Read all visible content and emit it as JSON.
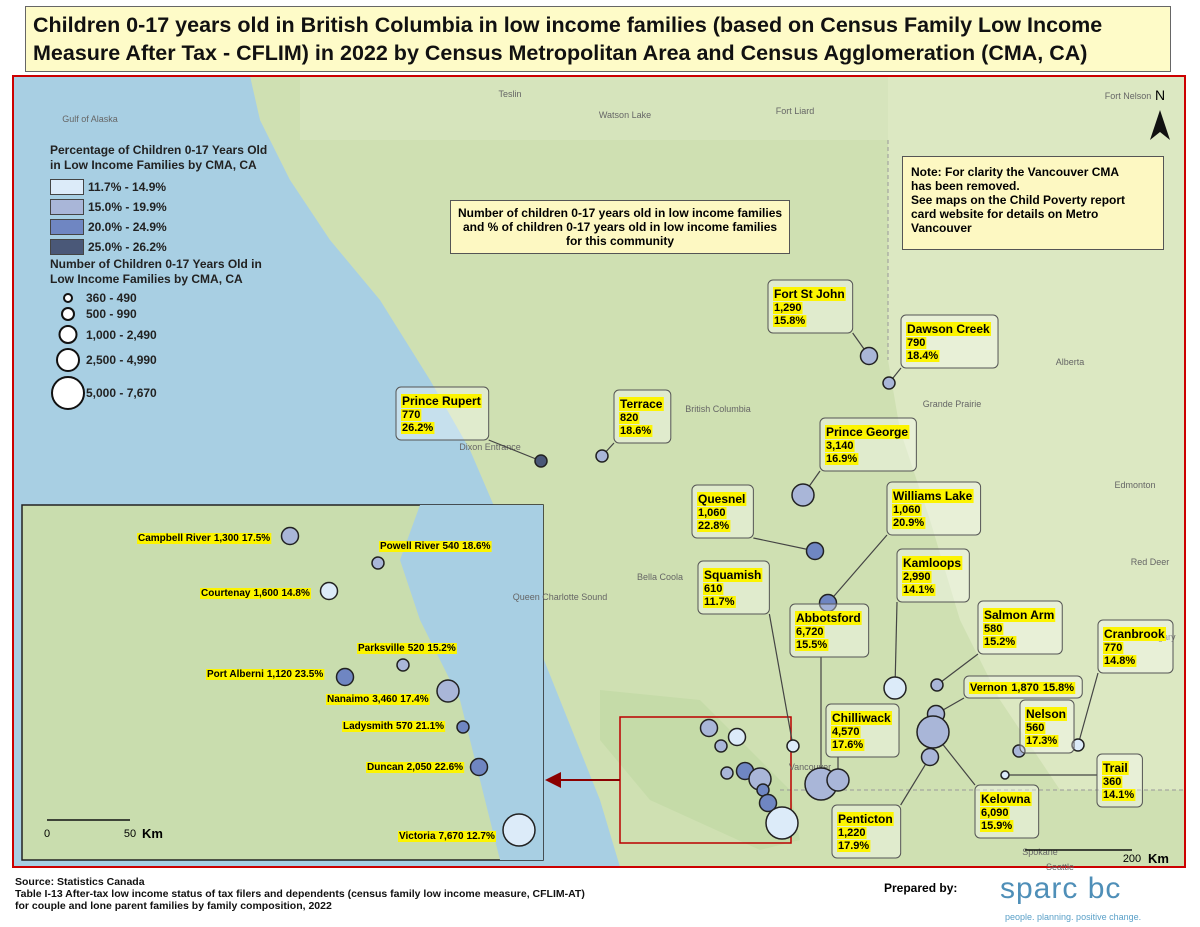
{
  "title": "Children 0-17 years old in British Columbia in low income families (based on Census Family Low Income Measure After Tax - CFLIM) in 2022 by Census Metropolitan Area and Census Agglomeration (CMA, CA)",
  "legend": {
    "color_title": "Percentage of Children 0-17 Years Old in Low Income Families by CMA, CA",
    "color_classes": [
      {
        "label": "11.7% - 14.9%",
        "min": 11.7,
        "max": 14.9,
        "color": "#dcebf9"
      },
      {
        "label": "15.0% - 19.9%",
        "min": 15.0,
        "max": 19.9,
        "color": "#a9b6d8"
      },
      {
        "label": "20.0% - 24.9%",
        "min": 20.0,
        "max": 24.9,
        "color": "#6f86c2"
      },
      {
        "label": "25.0% - 26.2%",
        "min": 25.0,
        "max": 26.2,
        "color": "#4a5878"
      }
    ],
    "size_title": "Number of Children 0-17 Years Old in Low Income Families by CMA, CA",
    "size_classes": [
      {
        "label": "360 - 490",
        "min": 360,
        "max": 490
      },
      {
        "label": "500 - 990",
        "min": 500,
        "max": 990
      },
      {
        "label": "1,000 - 2,490",
        "min": 1000,
        "max": 2490
      },
      {
        "label": "2,500 - 4,990",
        "min": 2500,
        "max": 4990
      },
      {
        "label": "5,000 - 7,670",
        "min": 5000,
        "max": 7670
      }
    ]
  },
  "callout": [
    "Number of children 0-17 years old in low income families",
    "and % of children 0-17 years old in low income families",
    "for this community"
  ],
  "note": [
    "Note: For clarity the Vancouver CMA",
    "has been removed.",
    "See maps on the Child Poverty report",
    "card website for details on Metro Vancouver"
  ],
  "communities": [
    {
      "name": "Fort St John",
      "count": 1290,
      "count_label": "1,290",
      "pct": 15.8,
      "pct_label": "15.8%"
    },
    {
      "name": "Dawson Creek",
      "count": 790,
      "count_label": "790",
      "pct": 18.4,
      "pct_label": "18.4%"
    },
    {
      "name": "Prince Rupert",
      "count": 770,
      "count_label": "770",
      "pct": 26.2,
      "pct_label": "26.2%"
    },
    {
      "name": "Terrace",
      "count": 820,
      "count_label": "820",
      "pct": 18.6,
      "pct_label": "18.6%"
    },
    {
      "name": "Prince George",
      "count": 3140,
      "count_label": "3,140",
      "pct": 16.9,
      "pct_label": "16.9%"
    },
    {
      "name": "Quesnel",
      "count": 1060,
      "count_label": "1,060",
      "pct": 22.8,
      "pct_label": "22.8%"
    },
    {
      "name": "Williams Lake",
      "count": 1060,
      "count_label": "1,060",
      "pct": 20.9,
      "pct_label": "20.9%"
    },
    {
      "name": "Kamloops",
      "count": 2990,
      "count_label": "2,990",
      "pct": 14.1,
      "pct_label": "14.1%"
    },
    {
      "name": "Squamish",
      "count": 610,
      "count_label": "610",
      "pct": 11.7,
      "pct_label": "11.7%"
    },
    {
      "name": "Abbotsford",
      "count": 6720,
      "count_label": "6,720",
      "pct": 15.5,
      "pct_label": "15.5%"
    },
    {
      "name": "Salmon Arm",
      "count": 580,
      "count_label": "580",
      "pct": 15.2,
      "pct_label": "15.2%"
    },
    {
      "name": "Cranbrook",
      "count": 770,
      "count_label": "770",
      "pct": 14.8,
      "pct_label": "14.8%"
    },
    {
      "name": "Vernon",
      "count": 1870,
      "count_label": "1,870",
      "pct": 15.8,
      "pct_label": "15.8%"
    },
    {
      "name": "Nelson",
      "count": 560,
      "count_label": "560",
      "pct": 17.3,
      "pct_label": "17.3%"
    },
    {
      "name": "Chilliwack",
      "count": 4570,
      "count_label": "4,570",
      "pct": 17.6,
      "pct_label": "17.6%"
    },
    {
      "name": "Trail",
      "count": 360,
      "count_label": "360",
      "pct": 14.1,
      "pct_label": "14.1%"
    },
    {
      "name": "Kelowna",
      "count": 6090,
      "count_label": "6,090",
      "pct": 15.9,
      "pct_label": "15.9%"
    },
    {
      "name": "Penticton",
      "count": 1220,
      "count_label": "1,220",
      "pct": 17.9,
      "pct_label": "17.9%"
    }
  ],
  "inset_communities": [
    {
      "name": "Campbell River",
      "count": 1300,
      "count_label": "1,300",
      "pct": 17.5,
      "pct_label": "17.5%"
    },
    {
      "name": "Powell River",
      "count": 540,
      "count_label": "540",
      "pct": 18.6,
      "pct_label": "18.6%"
    },
    {
      "name": "Courtenay",
      "count": 1600,
      "count_label": "1,600",
      "pct": 14.8,
      "pct_label": "14.8%"
    },
    {
      "name": "Parksville",
      "count": 520,
      "count_label": "520",
      "pct": 15.2,
      "pct_label": "15.2%"
    },
    {
      "name": "Port Alberni",
      "count": 1120,
      "count_label": "1,120",
      "pct": 23.5,
      "pct_label": "23.5%"
    },
    {
      "name": "Nanaimo",
      "count": 3460,
      "count_label": "3,460",
      "pct": 17.4,
      "pct_label": "17.4%"
    },
    {
      "name": "Ladysmith",
      "count": 570,
      "count_label": "570",
      "pct": 21.1,
      "pct_label": "21.1%"
    },
    {
      "name": "Duncan",
      "count": 2050,
      "count_label": "2,050",
      "pct": 22.6,
      "pct_label": "22.6%"
    },
    {
      "name": "Victoria",
      "count": 7670,
      "count_label": "7,670",
      "pct": 12.7,
      "pct_label": "12.7%"
    }
  ],
  "place_labels": [
    "Teslin",
    "Watson Lake",
    "Fort Liard",
    "Fort Nelson",
    "Gulf of Alaska",
    "British Columbia",
    "Alberta",
    "Grande Prairie",
    "Edmonton",
    "Red Deer",
    "Calgary",
    "Dixon Entrance",
    "Bella Coola",
    "Queen Charlotte Sound",
    "Vancouver",
    "Spokane",
    "Seattle"
  ],
  "north": "N",
  "inset_scale": [
    "0",
    "50",
    "Km"
  ],
  "main_scale": [
    "200",
    "Km"
  ],
  "source": [
    "Source: Statistics Canada",
    "Table I-13 After-tax low income status of tax filers and dependents (census family low income measure, CFLIM-AT)",
    "for couple and lone parent families by family composition, 2022"
  ],
  "prepared_by": "Prepared by:",
  "logo": "sparc bc",
  "tagline": "people. planning. positive change."
}
